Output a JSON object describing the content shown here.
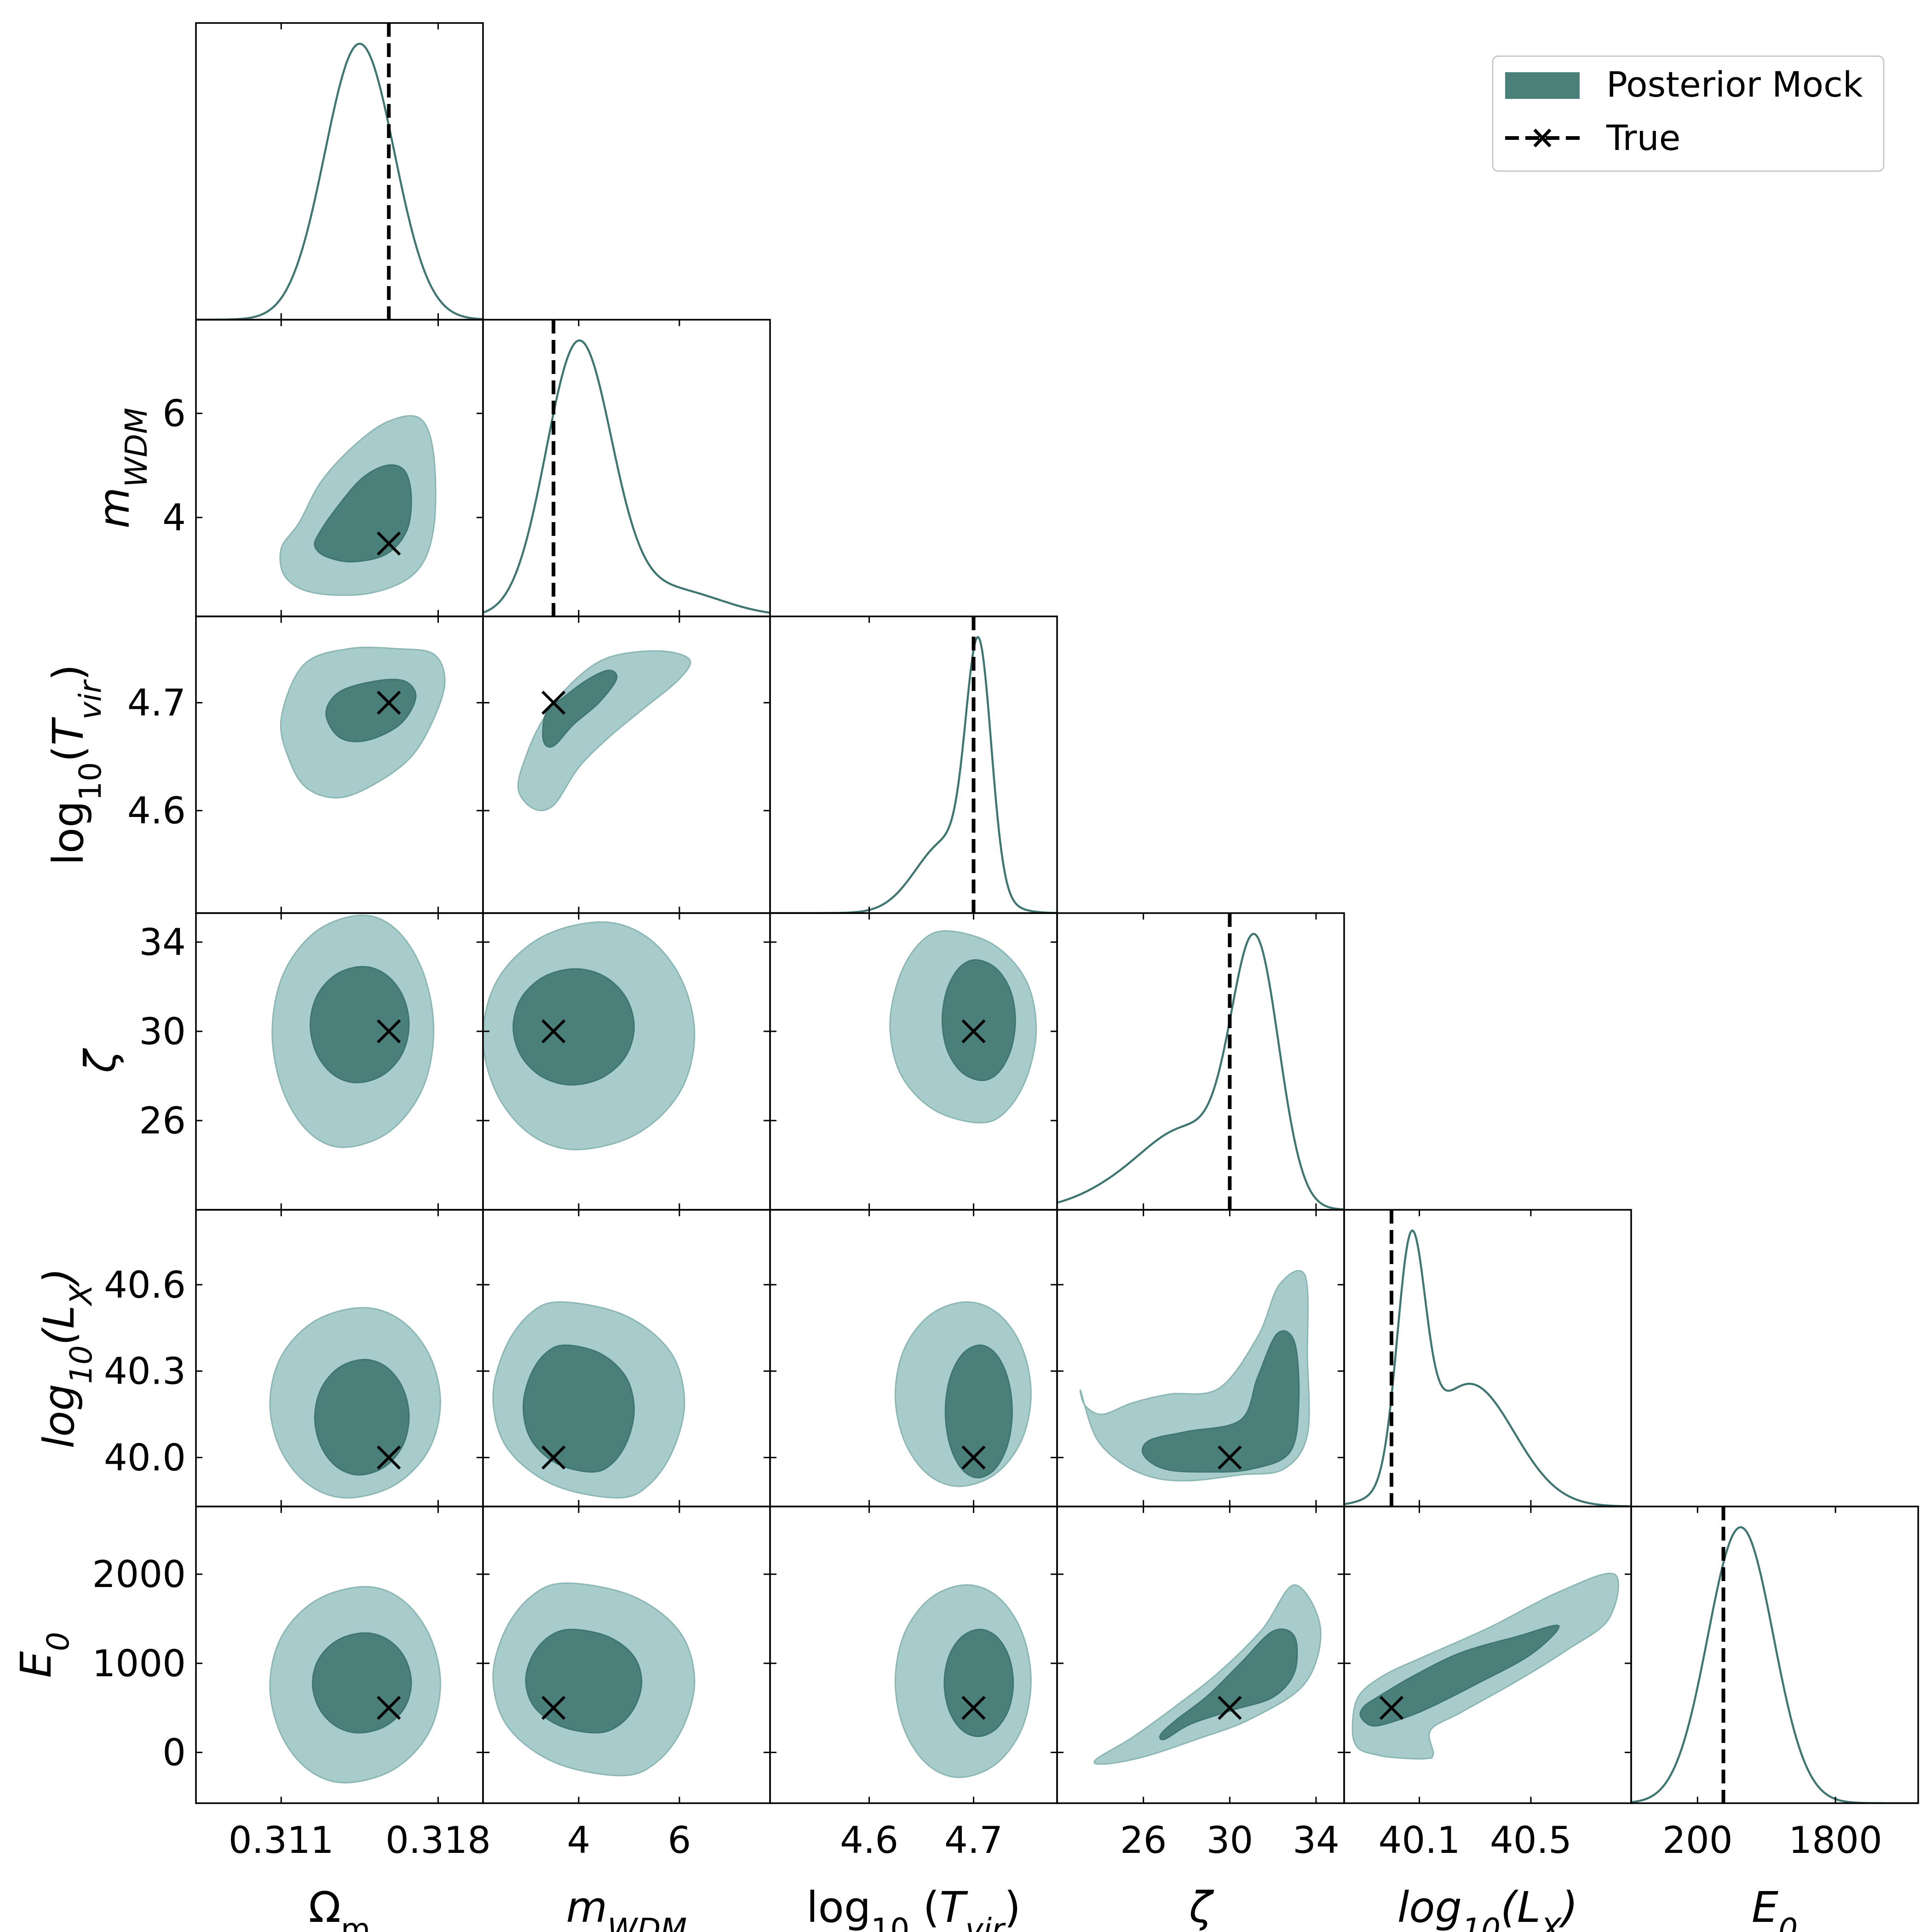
{
  "colors": {
    "dark_fill": "#4a7f7a",
    "light_fill": "#a8cbcb",
    "curve": "#3f7672",
    "truth": "#000000"
  },
  "chart_data": {
    "type": "corner",
    "grid": false,
    "legend": {
      "placement": "top-right",
      "entries": [
        {
          "label": "Posterior Mock",
          "style": "filled-patch"
        },
        {
          "label": "True",
          "style": "dashed-line-x-marker"
        }
      ]
    },
    "params": [
      {
        "key": "om",
        "label": "Ωm",
        "true": 0.3158,
        "range": [
          0.3072,
          0.32
        ],
        "ticks": [
          "0.311",
          "0.318"
        ],
        "tick_values": [
          0.311,
          0.318
        ]
      },
      {
        "key": "mwdm",
        "label": "mWDM",
        "true": 3.5,
        "range": [
          2.1,
          7.8
        ],
        "ticks": [
          "4",
          "6"
        ],
        "tick_values": [
          4,
          6
        ]
      },
      {
        "key": "tvir",
        "label": "log10 (Tvir)",
        "true": 4.7,
        "range": [
          4.505,
          4.78
        ],
        "ticks": [
          "4.6",
          "4.7"
        ],
        "tick_values": [
          4.6,
          4.7
        ]
      },
      {
        "key": "zeta",
        "label": "ζ",
        "true": 30,
        "range": [
          22.0,
          35.3
        ],
        "ticks": [
          "26",
          "30",
          "34"
        ],
        "tick_values": [
          26,
          30,
          34
        ]
      },
      {
        "key": "lx",
        "label": "log10(LX)",
        "true": 40.0,
        "range": [
          39.83,
          40.86
        ],
        "ticks": [
          "40.1",
          "40.5"
        ],
        "tick_values": [
          40.1,
          40.5
        ],
        "y_ticks": [
          "40.0",
          "40.3",
          "40.6"
        ],
        "y_tick_values": [
          40.0,
          40.3,
          40.6
        ]
      },
      {
        "key": "e0",
        "label": "E0",
        "true": 500,
        "range": [
          -570,
          2760
        ],
        "ticks": [
          "200",
          "1800"
        ],
        "tick_values": [
          200,
          1800
        ],
        "y_ticks": [
          "0",
          "1000",
          "2000"
        ],
        "y_tick_values": [
          0,
          1000,
          2000
        ]
      }
    ],
    "marginals": [
      {
        "param": "om",
        "components": [
          {
            "w": 1.0,
            "mu": 0.3145,
            "sd": 0.00155
          }
        ]
      },
      {
        "param": "mwdm",
        "components": [
          {
            "w": 1.0,
            "mu": 4.0,
            "sd": 0.65
          },
          {
            "w": 0.1,
            "mu": 5.8,
            "sd": 1.0
          }
        ]
      },
      {
        "param": "tvir",
        "components": [
          {
            "w": 0.8,
            "mu": 4.705,
            "sd": 0.012
          },
          {
            "w": 0.25,
            "mu": 4.675,
            "sd": 0.03
          }
        ]
      },
      {
        "param": "zeta",
        "components": [
          {
            "w": 1.0,
            "mu": 31.2,
            "sd": 1.1
          },
          {
            "w": 0.3,
            "mu": 28.2,
            "sd": 2.0
          },
          {
            "w": 0.08,
            "mu": 25.0,
            "sd": 2.0
          }
        ]
      },
      {
        "param": "lx",
        "components": [
          {
            "w": 1.0,
            "mu": 40.07,
            "sd": 0.05
          },
          {
            "w": 0.55,
            "mu": 40.28,
            "sd": 0.16
          }
        ]
      },
      {
        "param": "e0",
        "components": [
          {
            "w": 1.0,
            "mu": 700,
            "sd": 380
          }
        ]
      }
    ],
    "contours": [
      {
        "x": "om",
        "y": "mwdm",
        "outer": [
          [
            0.3118,
            3.9
          ],
          [
            0.3128,
            4.7
          ],
          [
            0.3143,
            5.4
          ],
          [
            0.3158,
            5.85
          ],
          [
            0.3172,
            5.9
          ],
          [
            0.3178,
            5.2
          ],
          [
            0.3178,
            3.8
          ],
          [
            0.317,
            2.95
          ],
          [
            0.315,
            2.55
          ],
          [
            0.3125,
            2.55
          ],
          [
            0.3112,
            2.85
          ],
          [
            0.311,
            3.4
          ]
        ],
        "inner": [
          [
            0.3127,
            3.7
          ],
          [
            0.3135,
            4.2
          ],
          [
            0.3146,
            4.75
          ],
          [
            0.3157,
            5.0
          ],
          [
            0.3165,
            4.9
          ],
          [
            0.3168,
            4.4
          ],
          [
            0.3166,
            3.75
          ],
          [
            0.3157,
            3.3
          ],
          [
            0.3142,
            3.15
          ],
          [
            0.313,
            3.25
          ],
          [
            0.3125,
            3.45
          ]
        ]
      },
      {
        "x": "om",
        "y": "tvir",
        "outer": [
          [
            0.311,
            4.685
          ],
          [
            0.312,
            4.735
          ],
          [
            0.314,
            4.75
          ],
          [
            0.3162,
            4.75
          ],
          [
            0.3178,
            4.745
          ],
          [
            0.3183,
            4.72
          ],
          [
            0.3178,
            4.685
          ],
          [
            0.3168,
            4.65
          ],
          [
            0.3152,
            4.625
          ],
          [
            0.3136,
            4.612
          ],
          [
            0.3122,
            4.62
          ],
          [
            0.3114,
            4.645
          ]
        ],
        "inner": [
          [
            0.313,
            4.69
          ],
          [
            0.3136,
            4.71
          ],
          [
            0.3152,
            4.72
          ],
          [
            0.3165,
            4.72
          ],
          [
            0.317,
            4.705
          ],
          [
            0.3163,
            4.68
          ],
          [
            0.3148,
            4.665
          ],
          [
            0.3136,
            4.668
          ]
        ]
      },
      {
        "x": "mwdm",
        "y": "tvir",
        "outer": [
          [
            2.8,
            4.62
          ],
          [
            2.95,
            4.65
          ],
          [
            3.3,
            4.685
          ],
          [
            3.9,
            4.72
          ],
          [
            4.6,
            4.742
          ],
          [
            5.6,
            4.748
          ],
          [
            6.2,
            4.74
          ],
          [
            6.0,
            4.722
          ],
          [
            5.3,
            4.695
          ],
          [
            4.6,
            4.668
          ],
          [
            4.0,
            4.64
          ],
          [
            3.5,
            4.605
          ],
          [
            3.1,
            4.602
          ]
        ],
        "inner": [
          [
            3.3,
            4.665
          ],
          [
            3.35,
            4.69
          ],
          [
            3.7,
            4.705
          ],
          [
            4.2,
            4.722
          ],
          [
            4.6,
            4.73
          ],
          [
            4.75,
            4.722
          ],
          [
            4.4,
            4.7
          ],
          [
            3.9,
            4.68
          ],
          [
            3.5,
            4.66
          ]
        ]
      },
      {
        "x": "zeta",
        "y": "lx",
        "outer": [
          [
            23.1,
            40.23
          ],
          [
            23.3,
            40.18
          ],
          [
            24.1,
            40.15
          ],
          [
            25.5,
            40.19
          ],
          [
            27.2,
            40.22
          ],
          [
            29.5,
            40.24
          ],
          [
            31.3,
            40.42
          ],
          [
            32.3,
            40.6
          ],
          [
            33.5,
            40.63
          ],
          [
            33.6,
            40.35
          ],
          [
            33.6,
            40.08
          ],
          [
            32.5,
            39.96
          ],
          [
            30.5,
            39.94
          ],
          [
            28.2,
            39.92
          ],
          [
            26.5,
            39.93
          ],
          [
            25.0,
            39.98
          ],
          [
            23.8,
            40.07
          ]
        ],
        "inner": [
          [
            26.0,
            40.01
          ],
          [
            26.3,
            40.06
          ],
          [
            28.0,
            40.09
          ],
          [
            30.5,
            40.13
          ],
          [
            31.3,
            40.28
          ],
          [
            32.2,
            40.43
          ],
          [
            33.0,
            40.4
          ],
          [
            33.2,
            40.2
          ],
          [
            32.8,
            40.02
          ],
          [
            31.0,
            39.96
          ],
          [
            29.0,
            39.95
          ],
          [
            27.0,
            39.96
          ]
        ]
      },
      {
        "x": "zeta",
        "y": "e0",
        "outer": [
          [
            23.8,
            -80
          ],
          [
            24.2,
            -130
          ],
          [
            26.0,
            -50
          ],
          [
            28.5,
            150
          ],
          [
            31.0,
            380
          ],
          [
            33.5,
            780
          ],
          [
            34.2,
            1400
          ],
          [
            33.0,
            1880
          ],
          [
            31.5,
            1380
          ],
          [
            29.5,
            900
          ],
          [
            27.5,
            520
          ],
          [
            25.5,
            170
          ]
        ],
        "inner": [
          [
            26.8,
            200
          ],
          [
            27.0,
            150
          ],
          [
            28.2,
            320
          ],
          [
            30.2,
            480
          ],
          [
            32.0,
            620
          ],
          [
            33.0,
            900
          ],
          [
            33.0,
            1300
          ],
          [
            32.0,
            1360
          ],
          [
            30.5,
            1000
          ],
          [
            29.0,
            640
          ],
          [
            27.5,
            360
          ]
        ]
      },
      {
        "x": "lx",
        "y": "e0",
        "outer": [
          [
            39.86,
            260
          ],
          [
            39.88,
            50
          ],
          [
            39.95,
            -30
          ],
          [
            40.02,
            -60
          ],
          [
            40.12,
            -70
          ],
          [
            40.15,
            -20
          ],
          [
            40.14,
            250
          ],
          [
            40.25,
            450
          ],
          [
            40.45,
            800
          ],
          [
            40.63,
            1150
          ],
          [
            40.78,
            1500
          ],
          [
            40.8,
            2000
          ],
          [
            40.6,
            1800
          ],
          [
            40.35,
            1400
          ],
          [
            40.12,
            1080
          ],
          [
            39.97,
            860
          ],
          [
            39.88,
            620
          ]
        ],
        "inner": [
          [
            39.89,
            400
          ],
          [
            39.93,
            300
          ],
          [
            40.0,
            340
          ],
          [
            40.12,
            480
          ],
          [
            40.3,
            760
          ],
          [
            40.5,
            1100
          ],
          [
            40.6,
            1420
          ],
          [
            40.45,
            1300
          ],
          [
            40.25,
            1120
          ],
          [
            40.08,
            860
          ],
          [
            39.95,
            620
          ],
          [
            39.9,
            510
          ]
        ]
      }
    ],
    "blobs": [
      {
        "x": "om",
        "y": "zeta",
        "outer": {
          "cx": 0.3142,
          "cy": 30,
          "rx": 0.0036,
          "ry": 5.2,
          "skew": 0.2
        },
        "inner": {
          "cx": 0.3145,
          "cy": 30.3,
          "rx": 0.0022,
          "ry": 2.6,
          "skew": 0.1
        }
      },
      {
        "x": "mwdm",
        "y": "zeta",
        "outer": {
          "cx": 4.2,
          "cy": 29.8,
          "rx": 2.1,
          "ry": 5.1,
          "skew": 0.2
        },
        "inner": {
          "cx": 3.9,
          "cy": 30.2,
          "rx": 1.2,
          "ry": 2.6,
          "skew": 0.05
        }
      },
      {
        "x": "tvir",
        "y": "zeta",
        "outer": {
          "cx": 4.69,
          "cy": 30.2,
          "rx": 0.07,
          "ry": 4.3,
          "skew": -0.4
        },
        "inner": {
          "cx": 4.705,
          "cy": 30.5,
          "rx": 0.035,
          "ry": 2.7,
          "skew": -0.15
        }
      },
      {
        "x": "om",
        "y": "lx",
        "outer": {
          "cx": 0.3143,
          "cy": 40.19,
          "rx": 0.0038,
          "ry": 0.33,
          "skew": 0.15
        },
        "inner": {
          "cx": 0.3146,
          "cy": 40.14,
          "rx": 0.0021,
          "ry": 0.2,
          "skew": 0.1
        }
      },
      {
        "x": "mwdm",
        "y": "lx",
        "outer": {
          "cx": 4.2,
          "cy": 40.2,
          "rx": 1.9,
          "ry": 0.34,
          "skew": -0.5
        },
        "inner": {
          "cx": 4.0,
          "cy": 40.17,
          "rx": 1.1,
          "ry": 0.22,
          "skew": -0.4
        }
      },
      {
        "x": "tvir",
        "y": "lx",
        "outer": {
          "cx": 4.69,
          "cy": 40.22,
          "rx": 0.065,
          "ry": 0.32,
          "skew": 0.1
        },
        "inner": {
          "cx": 4.705,
          "cy": 40.16,
          "rx": 0.032,
          "ry": 0.23,
          "skew": 0.05
        }
      },
      {
        "x": "om",
        "y": "e0",
        "outer": {
          "cx": 0.3143,
          "cy": 760,
          "rx": 0.0038,
          "ry": 1100,
          "skew": 0.2
        },
        "inner": {
          "cx": 0.3146,
          "cy": 780,
          "rx": 0.0022,
          "ry": 560,
          "skew": 0.1
        }
      },
      {
        "x": "mwdm",
        "y": "e0",
        "outer": {
          "cx": 4.3,
          "cy": 820,
          "rx": 2.0,
          "ry": 1080,
          "skew": -0.45
        },
        "inner": {
          "cx": 4.1,
          "cy": 800,
          "rx": 1.15,
          "ry": 580,
          "skew": -0.35
        }
      },
      {
        "x": "tvir",
        "y": "e0",
        "outer": {
          "cx": 4.69,
          "cy": 800,
          "rx": 0.065,
          "ry": 1080,
          "skew": 0.1
        },
        "inner": {
          "cx": 4.705,
          "cy": 780,
          "rx": 0.033,
          "ry": 600,
          "skew": 0.05
        }
      }
    ]
  }
}
